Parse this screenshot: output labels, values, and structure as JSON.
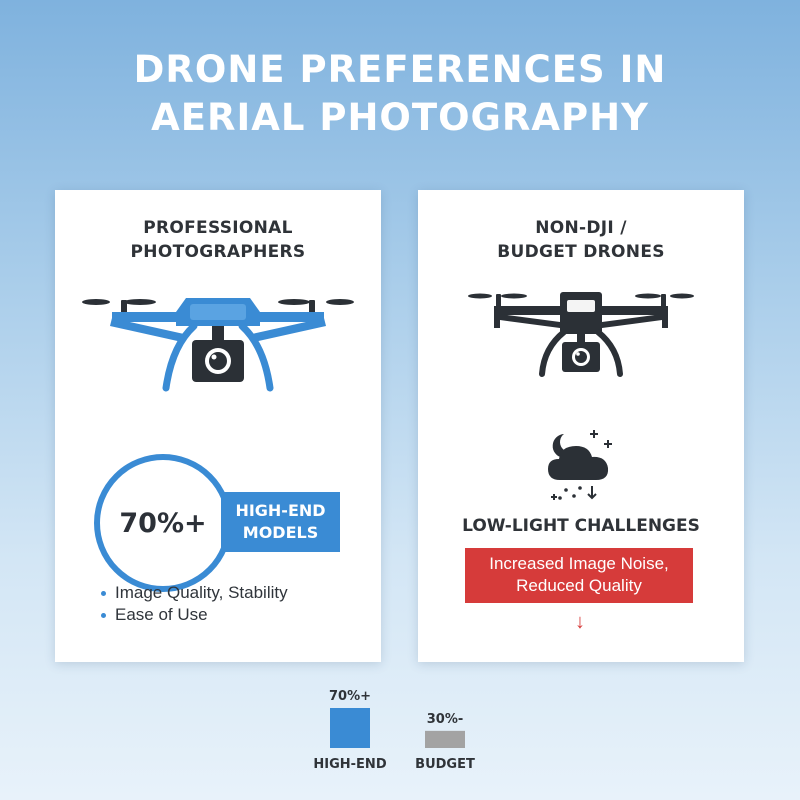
{
  "title": {
    "line1": "DRONE PREFERENCES IN",
    "line2": "AERIAL PHOTOGRAPHY"
  },
  "professional": {
    "title_line1": "PROFESSIONAL",
    "title_line2": "PHOTOGRAPHERS",
    "stat_value": "70%+",
    "tag_line1": "HIGH-END",
    "tag_line2": "MODELS",
    "bullets": [
      "Image Quality, Stability",
      "Ease of Use"
    ]
  },
  "budget": {
    "title_line1": "NON-DJI /",
    "title_line2": "BUDGET DRONES",
    "challenge": "LOW-LIGHT CHALLENGES",
    "noise_line1": "Increased Image Noise,",
    "noise_line2": "Reduced Quality",
    "arrow": "↓"
  },
  "colors": {
    "accent_blue": "#3a8bd4",
    "alert_red": "#d63b3a",
    "budget_gray": "#a3a3a3",
    "dark_icon": "#2b3036"
  },
  "icons": {
    "left_drone": "camera-drone-icon",
    "right_drone": "camera-drone-icon",
    "weather": "cloud-night-rain-icon"
  },
  "chart_data": {
    "type": "bar",
    "categories": [
      "HIGH-END",
      "BUDGET"
    ],
    "values": [
      70,
      30
    ],
    "value_labels": [
      "70%+",
      "30%-"
    ],
    "colors": [
      "#3a8bd4",
      "#a3a3a3"
    ],
    "ylim": [
      0,
      70
    ],
    "grid": false,
    "legend": "none"
  }
}
